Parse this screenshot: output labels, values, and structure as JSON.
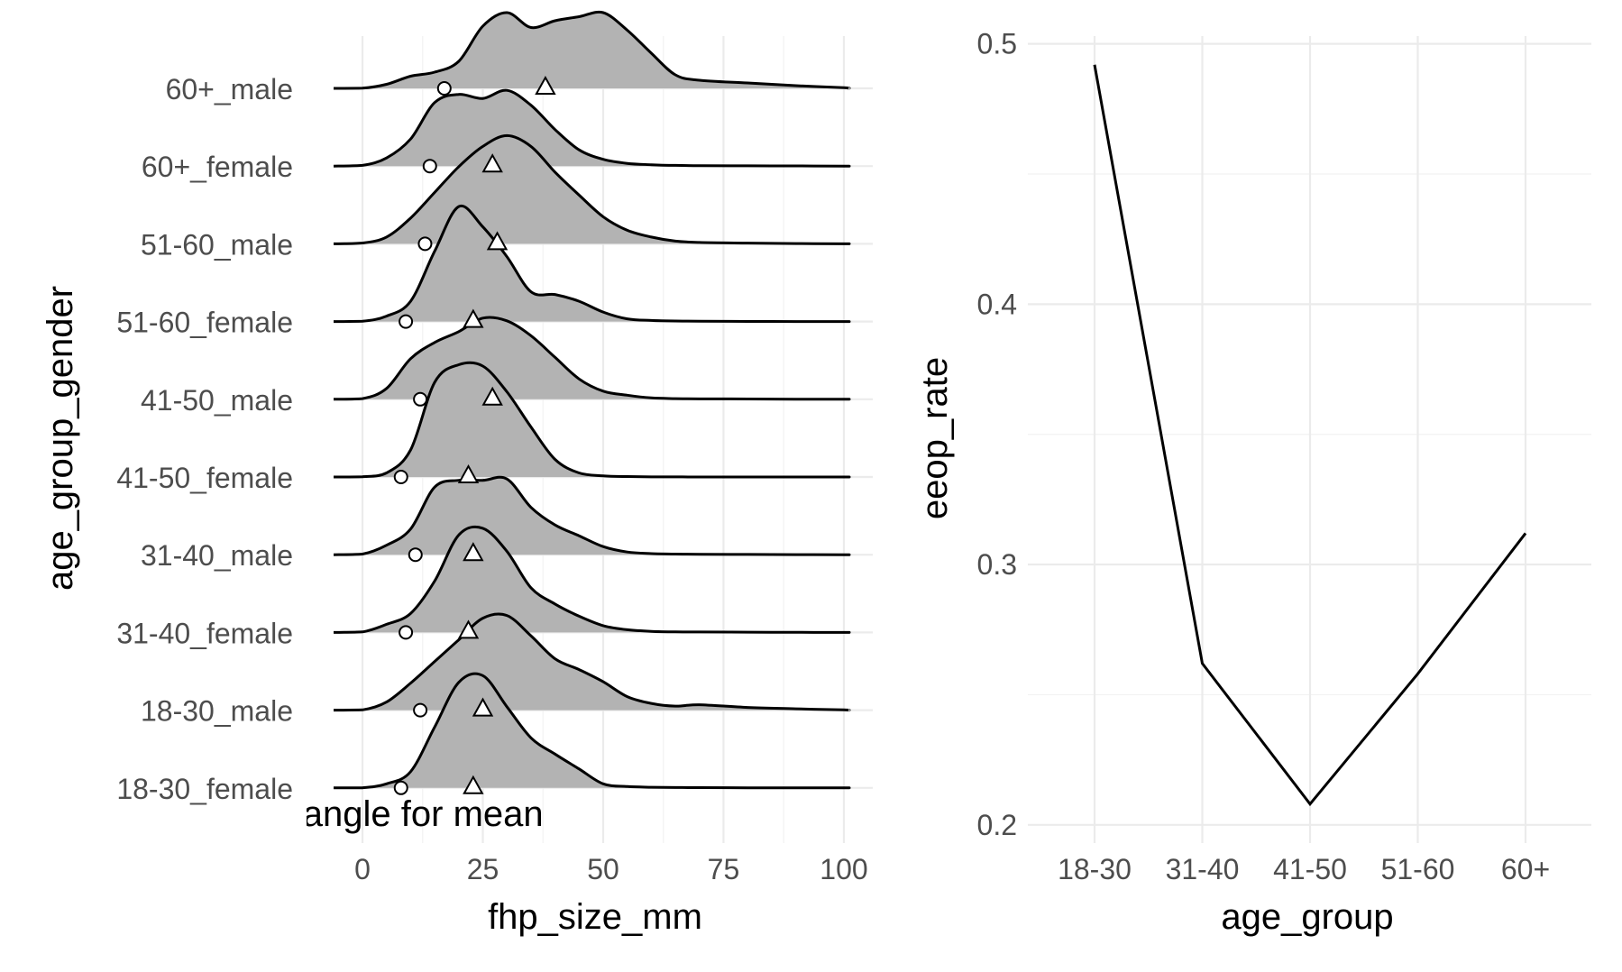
{
  "chart_data": [
    {
      "type": "ridgeline",
      "xlabel": "fhp_size_mm",
      "ylabel": "age_group_gender",
      "x_ticks": [
        "0",
        "25",
        "50",
        "75",
        "100"
      ],
      "xlim": [
        -6,
        106
      ],
      "annotation": "sd, triangle for mean",
      "grid": true,
      "categories": [
        "18-30_female",
        "18-30_male",
        "31-40_female",
        "31-40_male",
        "41-50_female",
        "41-50_male",
        "51-60_female",
        "51-60_male",
        "60+_female",
        "60+_male"
      ],
      "sd_markers": [
        8,
        12,
        9,
        11,
        8,
        12,
        9,
        13,
        14,
        17
      ],
      "mean_markers": [
        23,
        25,
        22,
        23,
        22,
        27,
        23,
        28,
        27,
        38
      ],
      "density_grid": [
        -6,
        0,
        5,
        10,
        15,
        20,
        25,
        30,
        35,
        40,
        45,
        50,
        55,
        60,
        65,
        70,
        80,
        90,
        100,
        101
      ],
      "densities": [
        [
          0,
          0.001,
          0.03,
          0.12,
          0.45,
          0.78,
          0.83,
          0.6,
          0.37,
          0.25,
          0.14,
          0.03,
          0.01,
          0.005,
          0.003,
          0.002,
          0.001,
          0,
          0,
          0
        ],
        [
          0,
          0.002,
          0.06,
          0.2,
          0.36,
          0.52,
          0.68,
          0.7,
          0.55,
          0.38,
          0.3,
          0.21,
          0.1,
          0.05,
          0.03,
          0.04,
          0.02,
          0.01,
          0.002,
          0
        ],
        [
          0,
          0.004,
          0.06,
          0.14,
          0.38,
          0.72,
          0.77,
          0.6,
          0.33,
          0.21,
          0.12,
          0.05,
          0.02,
          0.008,
          0.004,
          0.003,
          0.002,
          0.001,
          0,
          0
        ],
        [
          0,
          0.005,
          0.07,
          0.19,
          0.5,
          0.55,
          0.55,
          0.56,
          0.35,
          0.22,
          0.14,
          0.06,
          0.02,
          0.008,
          0.005,
          0.003,
          0.002,
          0.001,
          0,
          0
        ],
        [
          0,
          0.002,
          0.03,
          0.2,
          0.7,
          0.83,
          0.82,
          0.63,
          0.37,
          0.13,
          0.03,
          0.008,
          0.003,
          0.001,
          0.001,
          0,
          0,
          0,
          0,
          0
        ],
        [
          0,
          0.005,
          0.08,
          0.3,
          0.42,
          0.5,
          0.6,
          0.58,
          0.47,
          0.31,
          0.15,
          0.06,
          0.03,
          0.01,
          0.005,
          0.003,
          0.002,
          0.001,
          0,
          0
        ],
        [
          0,
          0.002,
          0.04,
          0.15,
          0.52,
          0.85,
          0.7,
          0.48,
          0.22,
          0.2,
          0.15,
          0.07,
          0.02,
          0.008,
          0.004,
          0.002,
          0.001,
          0,
          0,
          0
        ],
        [
          0,
          0.006,
          0.05,
          0.19,
          0.38,
          0.57,
          0.72,
          0.8,
          0.72,
          0.53,
          0.36,
          0.2,
          0.1,
          0.05,
          0.02,
          0.01,
          0.005,
          0.002,
          0,
          0
        ],
        [
          0,
          0.005,
          0.06,
          0.2,
          0.47,
          0.53,
          0.5,
          0.56,
          0.45,
          0.27,
          0.12,
          0.05,
          0.02,
          0.01,
          0.005,
          0.003,
          0.002,
          0.001,
          0,
          0
        ],
        [
          0,
          0.001,
          0.03,
          0.09,
          0.12,
          0.2,
          0.46,
          0.56,
          0.45,
          0.5,
          0.53,
          0.56,
          0.43,
          0.26,
          0.1,
          0.06,
          0.04,
          0.02,
          0.005,
          0
        ]
      ]
    },
    {
      "type": "line",
      "xlabel": "age_group",
      "ylabel": "eeop_rate",
      "categories": [
        "18-30",
        "31-40",
        "41-50",
        "51-60",
        "60+"
      ],
      "values": [
        0.492,
        0.262,
        0.208,
        0.258,
        0.312
      ],
      "y_ticks": [
        "0.2",
        "0.3",
        "0.4",
        "0.5"
      ],
      "ylim": [
        0.193,
        0.503
      ],
      "grid": true
    }
  ]
}
